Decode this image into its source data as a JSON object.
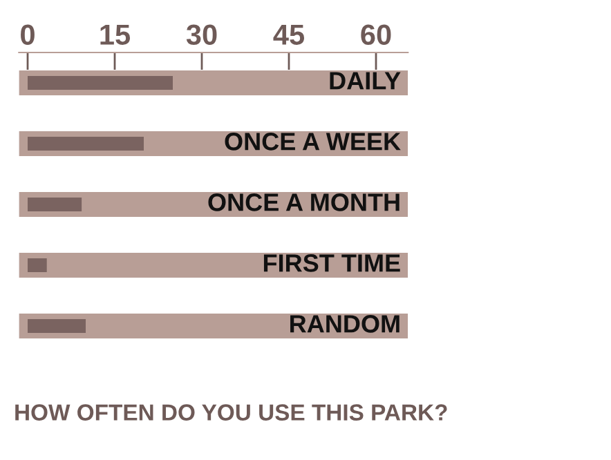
{
  "chart_data": {
    "type": "bar",
    "orientation": "horizontal",
    "title": "HOW OFTEN DO YOU USE THIS PARK?",
    "categories": [
      "DAILY",
      "ONCE A WEEK",
      "ONCE A MONTH",
      "FIRST TIME",
      "RANDOM"
    ],
    "series": [
      {
        "color": "#b89e96",
        "base": [
          -1.5,
          -1.5,
          -1.5,
          -1.5,
          -1.5
        ],
        "values": [
          67,
          67,
          67,
          67,
          67
        ]
      },
      {
        "color": "#7a6360",
        "values": [
          25,
          20,
          9.3,
          3.3,
          10
        ]
      }
    ],
    "xlim": [
      -1.5,
      65.5
    ],
    "xticks": [
      0,
      15,
      30,
      45,
      60
    ],
    "grid": false,
    "legend": false
  }
}
